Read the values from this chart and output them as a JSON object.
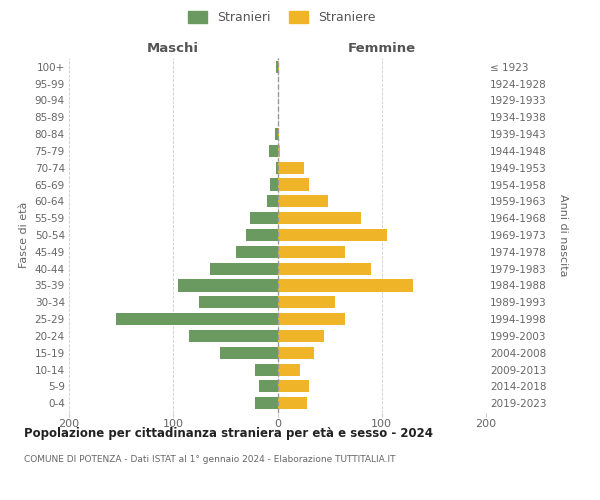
{
  "age_groups_bottom_to_top": [
    "0-4",
    "5-9",
    "10-14",
    "15-19",
    "20-24",
    "25-29",
    "30-34",
    "35-39",
    "40-44",
    "45-49",
    "50-54",
    "55-59",
    "60-64",
    "65-69",
    "70-74",
    "75-79",
    "80-84",
    "85-89",
    "90-94",
    "95-99",
    "100+"
  ],
  "birth_years_bottom_to_top": [
    "2019-2023",
    "2014-2018",
    "2009-2013",
    "2004-2008",
    "1999-2003",
    "1994-1998",
    "1989-1993",
    "1984-1988",
    "1979-1983",
    "1974-1978",
    "1969-1973",
    "1964-1968",
    "1959-1963",
    "1954-1958",
    "1949-1953",
    "1944-1948",
    "1939-1943",
    "1934-1938",
    "1929-1933",
    "1924-1928",
    "≤ 1923"
  ],
  "maschi_bottom_to_top": [
    22,
    18,
    22,
    55,
    85,
    155,
    75,
    95,
    65,
    40,
    30,
    26,
    10,
    7,
    1,
    8,
    2,
    0,
    0,
    0,
    1
  ],
  "femmine_bottom_to_top": [
    28,
    30,
    22,
    35,
    45,
    65,
    55,
    130,
    90,
    65,
    105,
    80,
    48,
    30,
    25,
    2,
    1,
    0,
    0,
    0,
    1
  ],
  "color_maschi": "#6a9a5f",
  "color_femmine": "#f0b429",
  "title": "Popolazione per cittadinanza straniera per età e sesso - 2024",
  "subtitle": "COMUNE DI POTENZA - Dati ISTAT al 1° gennaio 2024 - Elaborazione TUTTITALIA.IT",
  "label_maschi": "Maschi",
  "label_femmine": "Femmine",
  "ylabel_left": "Fasce di età",
  "ylabel_right": "Anni di nascita",
  "legend_maschi": "Stranieri",
  "legend_femmine": "Straniere",
  "xlim": 200,
  "background_color": "#ffffff",
  "grid_color": "#cccccc"
}
